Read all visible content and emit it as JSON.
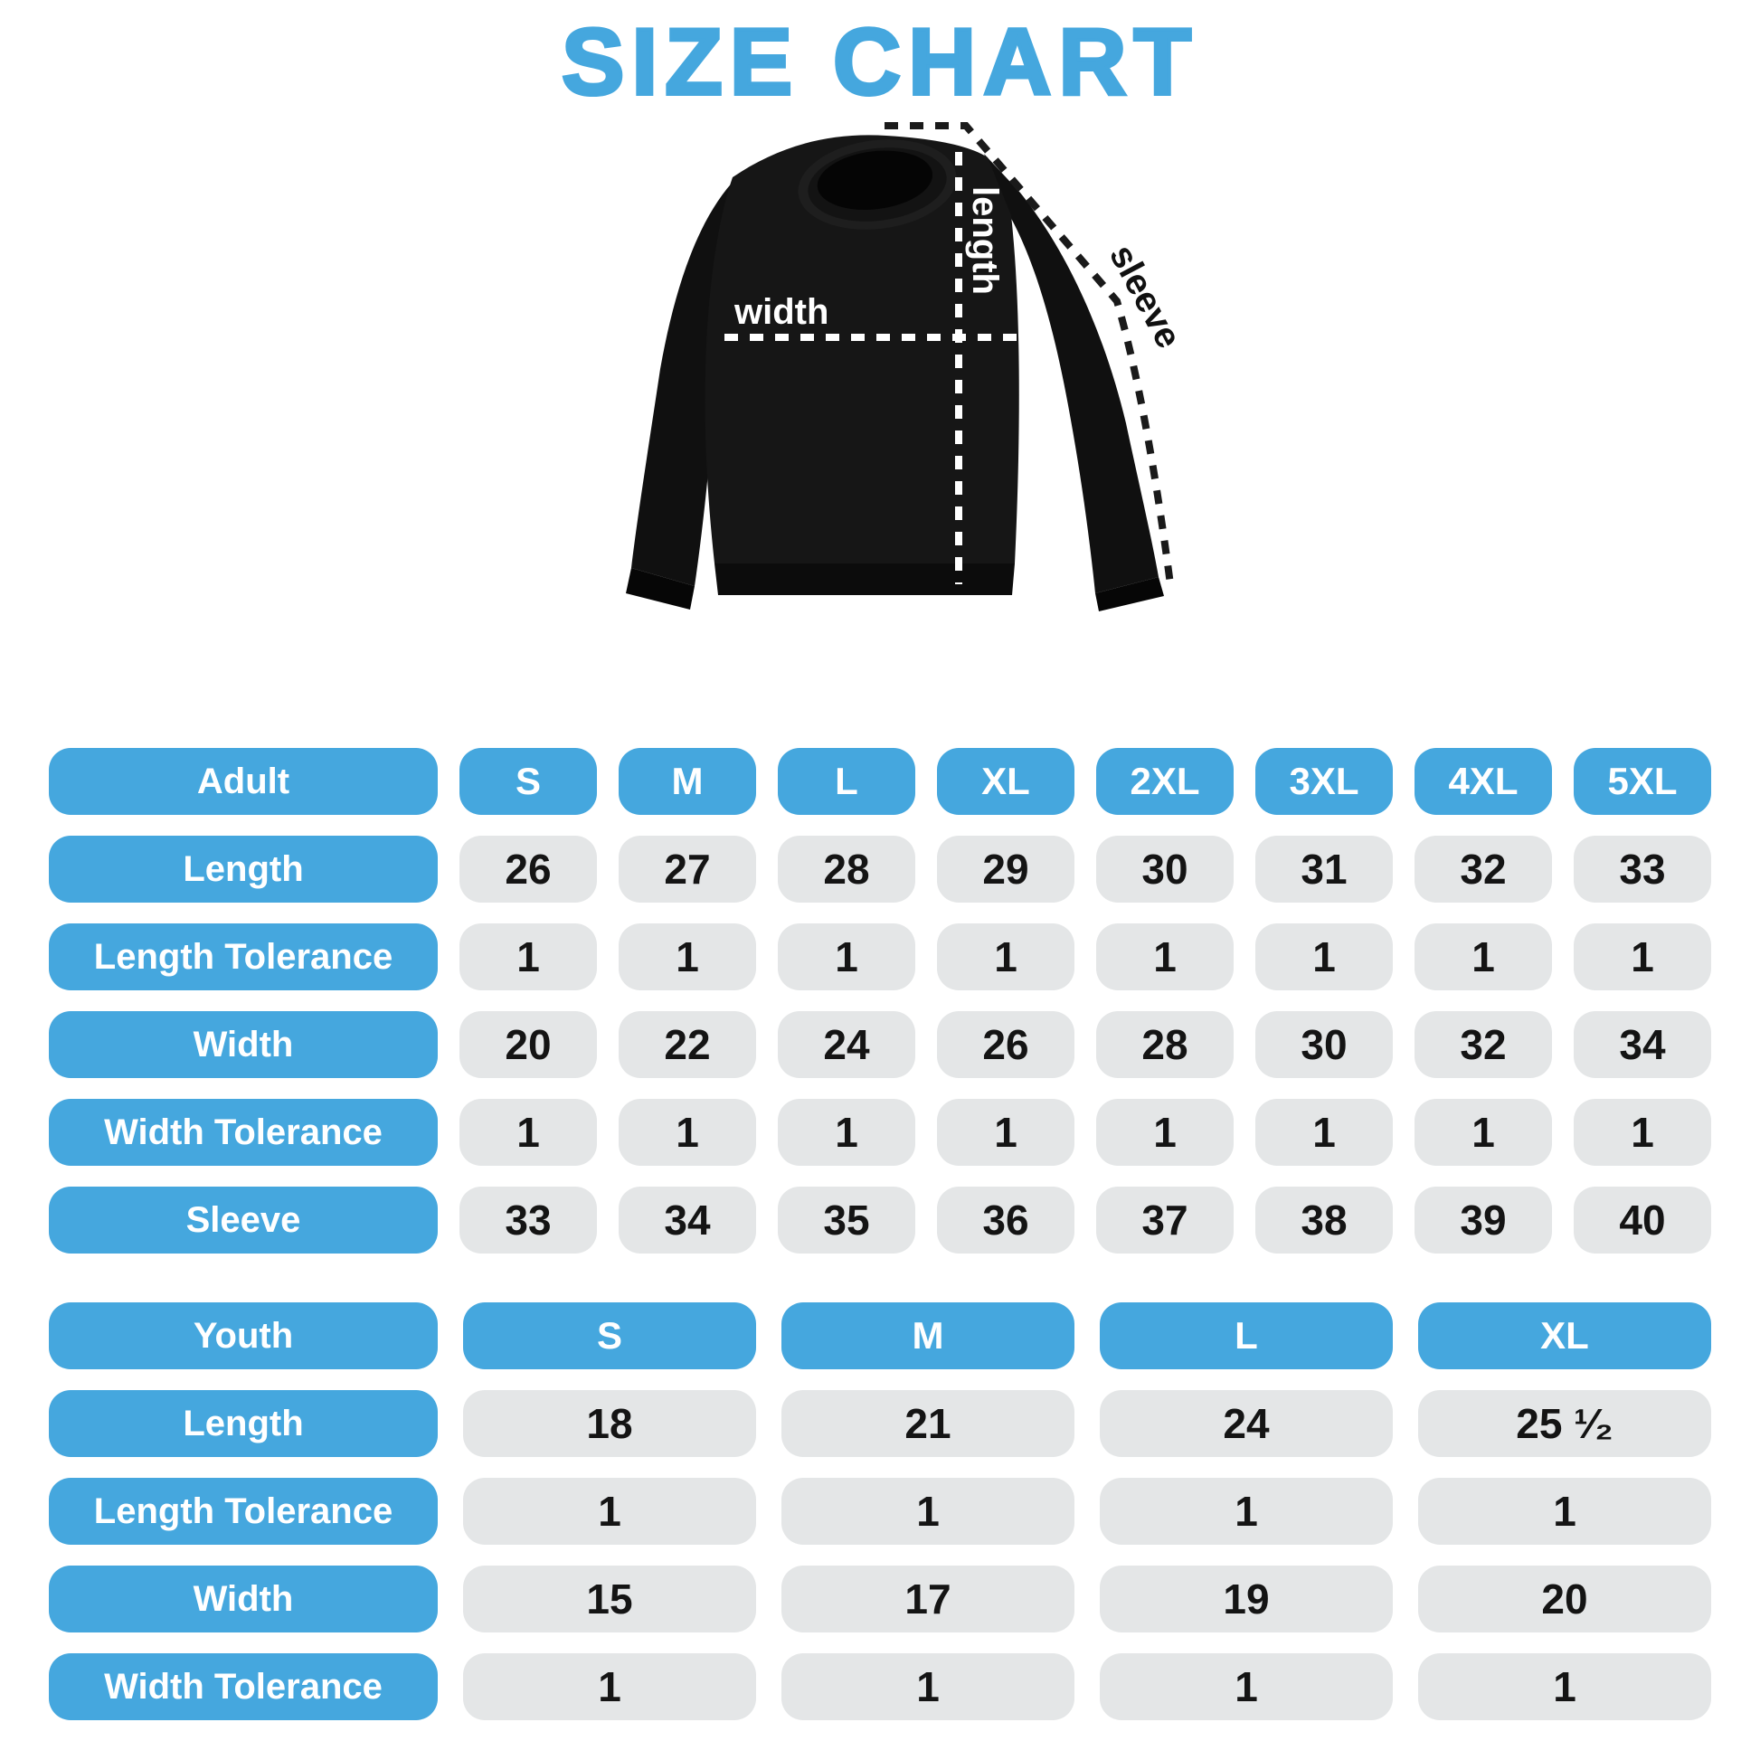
{
  "title": "SIZE CHART",
  "colors": {
    "accent_blue": "#45A7DE",
    "cell_grey": "#E4E6E7",
    "number_text": "#141414",
    "background": "#FFFFFF",
    "garment": "#141414"
  },
  "diagram": {
    "garment": "black crewneck sweatshirt",
    "labels": {
      "length": "length",
      "width": "width",
      "sleeve": "sleeve"
    }
  },
  "chart_data": [
    {
      "type": "table",
      "title": "Adult",
      "header": [
        "Adult",
        "S",
        "M",
        "L",
        "XL",
        "2XL",
        "3XL",
        "4XL",
        "5XL"
      ],
      "rows": [
        [
          "Length",
          "26",
          "27",
          "28",
          "29",
          "30",
          "31",
          "32",
          "33"
        ],
        [
          "Length Tolerance",
          "1",
          "1",
          "1",
          "1",
          "1",
          "1",
          "1",
          "1"
        ],
        [
          "Width",
          "20",
          "22",
          "24",
          "26",
          "28",
          "30",
          "32",
          "34"
        ],
        [
          "Width Tolerance",
          "1",
          "1",
          "1",
          "1",
          "1",
          "1",
          "1",
          "1"
        ],
        [
          "Sleeve",
          "33",
          "34",
          "35",
          "36",
          "37",
          "38",
          "39",
          "40"
        ]
      ]
    },
    {
      "type": "table",
      "title": "Youth",
      "header": [
        "Youth",
        "S",
        "M",
        "L",
        "XL"
      ],
      "rows": [
        [
          "Length",
          "18",
          "21",
          "24",
          "25 ¹⁄₂"
        ],
        [
          "Length Tolerance",
          "1",
          "1",
          "1",
          "1"
        ],
        [
          "Width",
          "15",
          "17",
          "19",
          "20"
        ],
        [
          "Width Tolerance",
          "1",
          "1",
          "1",
          "1"
        ]
      ]
    }
  ]
}
